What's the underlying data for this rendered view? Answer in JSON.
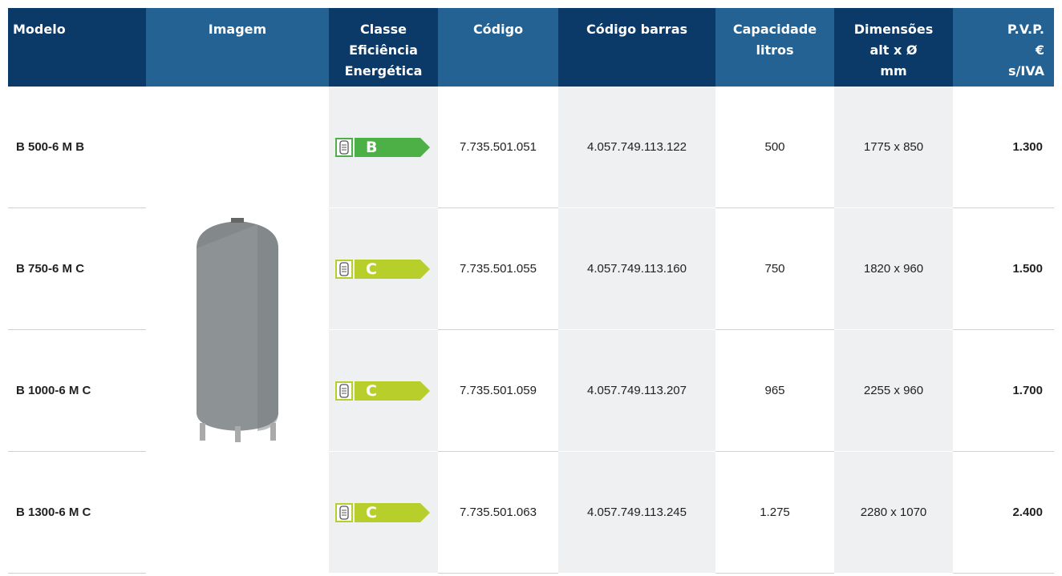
{
  "table": {
    "headers": [
      [
        "Modelo"
      ],
      [
        "Imagem"
      ],
      [
        "Classe",
        "Eficiência",
        "Energética"
      ],
      [
        "Código"
      ],
      [
        "Código barras"
      ],
      [
        "Capacidade",
        "litros"
      ],
      [
        "Dimensões",
        "alt x Ø",
        "mm"
      ],
      [
        "P.V.P.",
        "€",
        "s/IVA"
      ]
    ],
    "class_colors": {
      "B": "#4db047",
      "C": "#b8cf2b"
    },
    "rows": [
      [
        "B 500-6 M B",
        "B",
        "7.735.501.051",
        "4.057.749.113.122",
        "500",
        "1775 x 850",
        "1.300"
      ],
      [
        "B 750-6 M C",
        "C",
        "7.735.501.055",
        "4.057.749.113.160",
        "750",
        "1820 x 960",
        "1.500"
      ],
      [
        "B 1000-6 M C",
        "C",
        "7.735.501.059",
        "4.057.749.113.207",
        "965",
        "2255 x 960",
        "1.700"
      ],
      [
        "B 1300-6 M C",
        "C",
        "7.735.501.063",
        "4.057.749.113.245",
        "1.275",
        "2280 x 1070",
        "2.400"
      ]
    ]
  }
}
